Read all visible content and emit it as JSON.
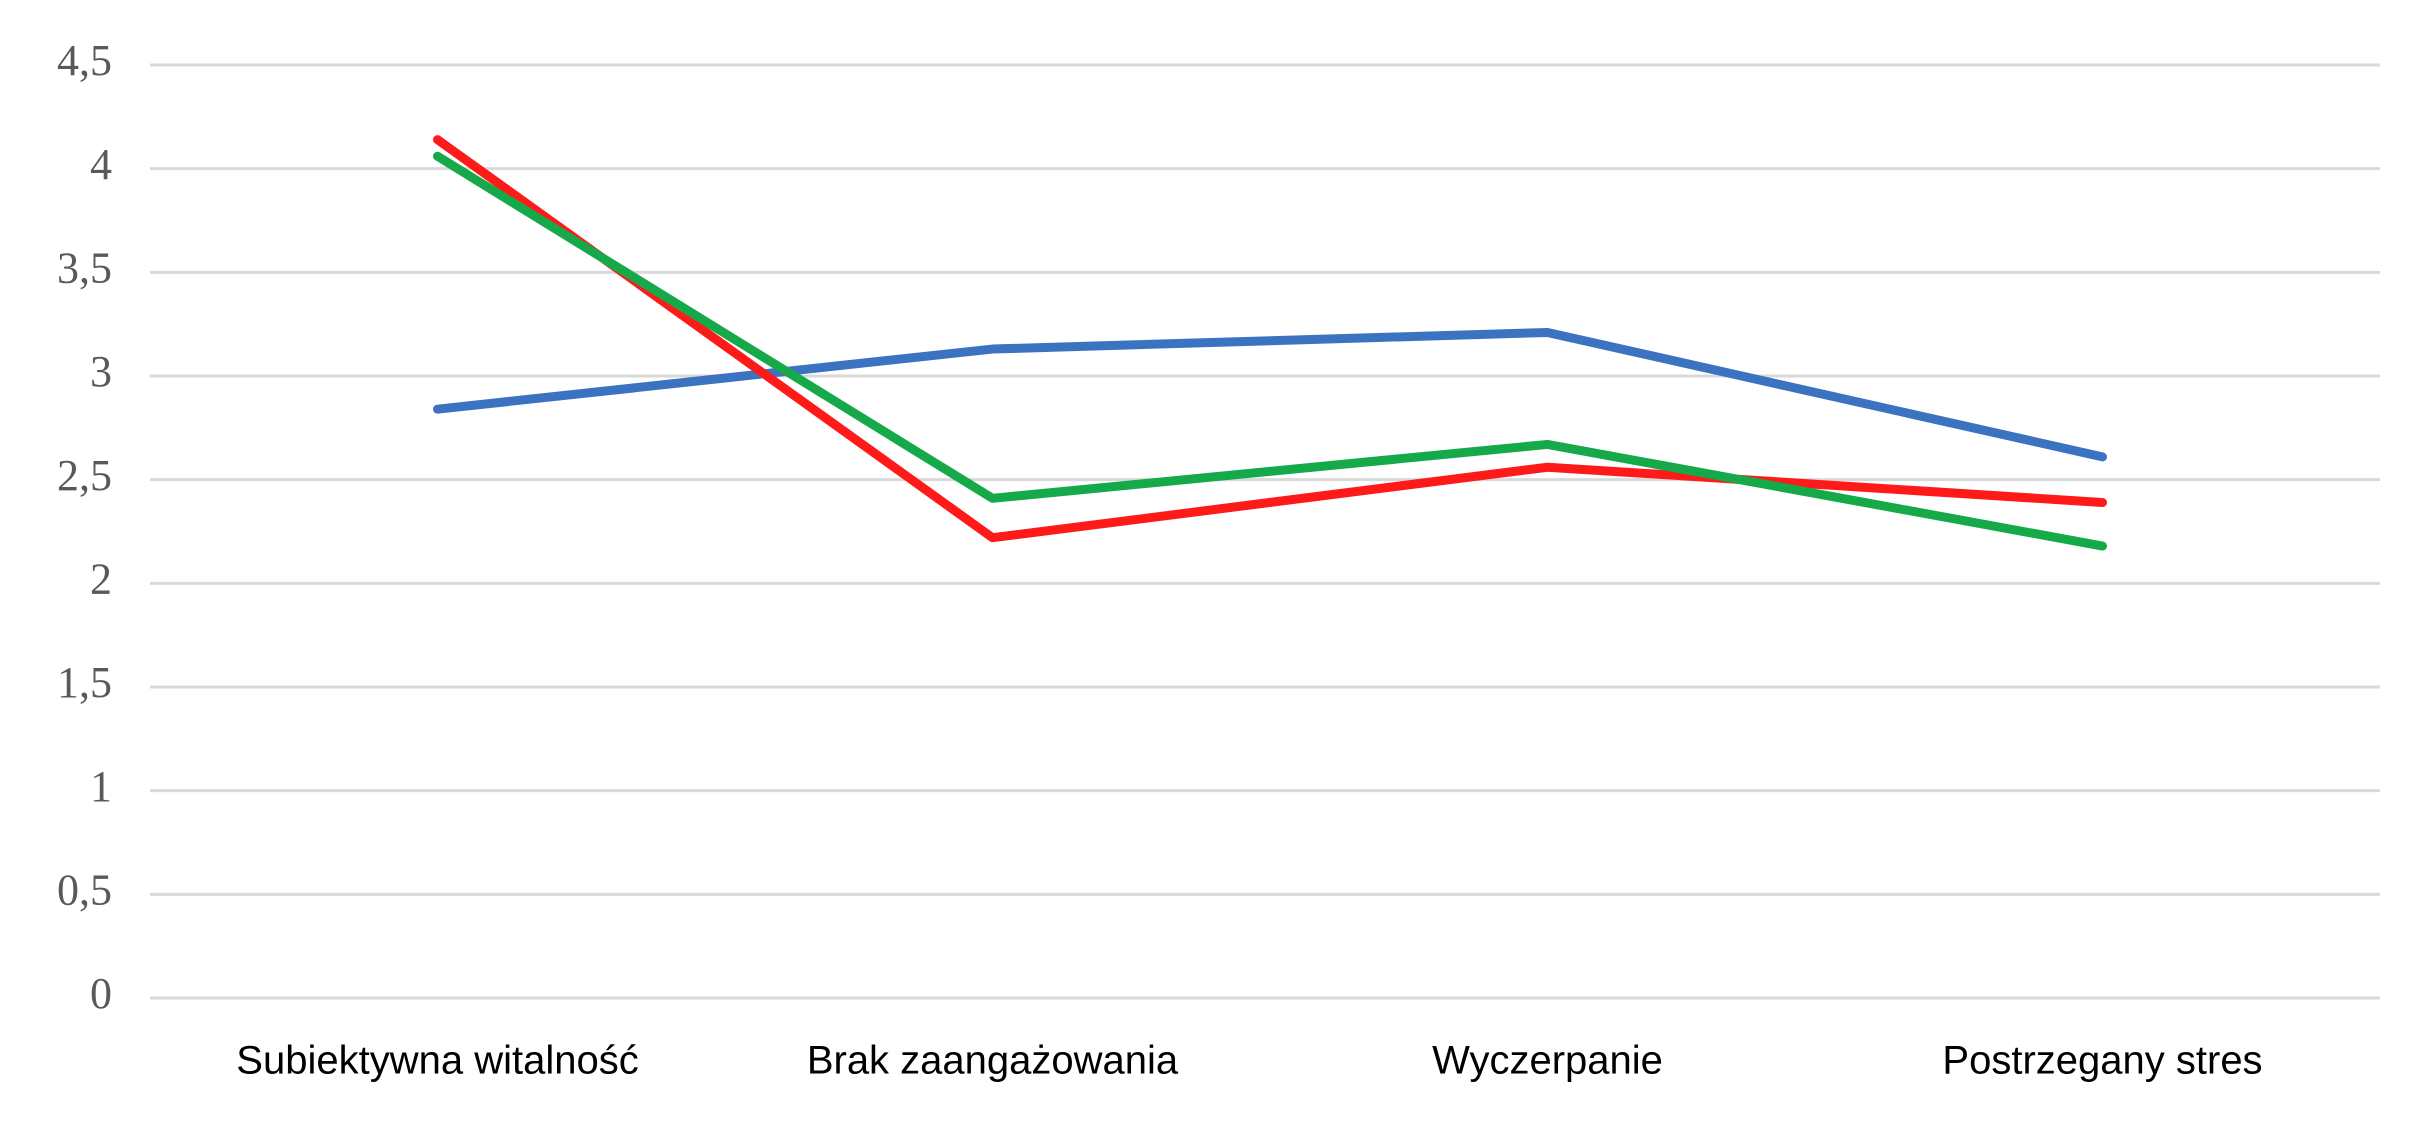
{
  "chart_data": {
    "type": "line",
    "categories": [
      "Subiektywna witalność",
      "Brak zaangażowania",
      "Wyczerpanie",
      "Postrzegany stres"
    ],
    "series": [
      {
        "color": "#3b73c0",
        "values": [
          2.84,
          3.13,
          3.21,
          2.61
        ]
      },
      {
        "color": "#ff1a1a",
        "values": [
          4.14,
          2.22,
          2.56,
          2.39
        ]
      },
      {
        "color": "#16a94a",
        "values": [
          4.06,
          2.41,
          2.67,
          2.18
        ]
      }
    ],
    "ylim": [
      0,
      4.5
    ],
    "yticks": [
      0,
      {
        "value": 0.5,
        "label": "0,5"
      },
      1,
      {
        "value": 1.5,
        "label": "1,5"
      },
      2,
      {
        "value": 2.5,
        "label": "2,5"
      },
      3,
      {
        "value": 3.5,
        "label": "3,5"
      },
      4,
      {
        "value": 4.5,
        "label": "4,5"
      }
    ],
    "grid": true
  }
}
